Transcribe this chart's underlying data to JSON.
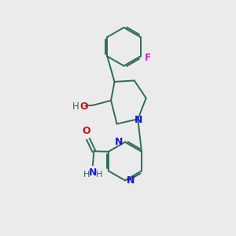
{
  "bg_color": "#ebebeb",
  "bond_color": "#2d6b5e",
  "n_color": "#1a1acc",
  "o_color": "#cc1111",
  "f_color": "#cc22cc",
  "figsize": [
    3.0,
    3.0
  ],
  "dpi": 100,
  "xlim": [
    0,
    10
  ],
  "ylim": [
    0,
    10
  ]
}
